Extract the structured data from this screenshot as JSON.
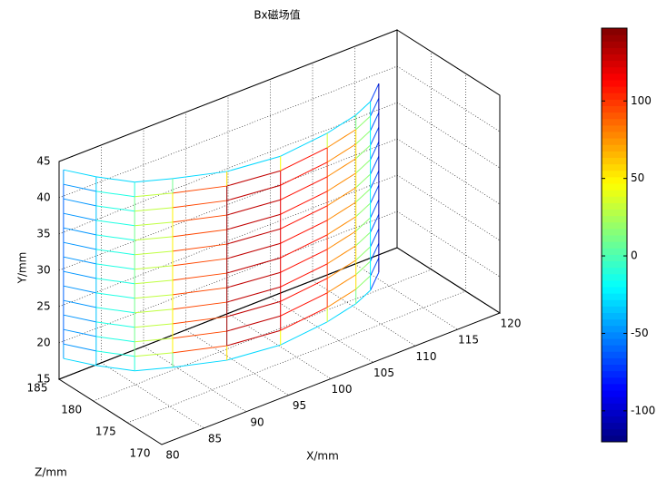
{
  "chart_data": {
    "type": "mesh3d",
    "title": "Bx磁场值",
    "xlabel": "X/mm",
    "ylabel": "Y/mm",
    "zlabel": "Z/mm",
    "xlim": [
      80,
      120
    ],
    "ylim": [
      15,
      45
    ],
    "zlim": [
      170,
      185
    ],
    "xticks": [
      80,
      85,
      90,
      95,
      100,
      105,
      110,
      115,
      120
    ],
    "yticks": [
      15,
      20,
      25,
      30,
      35,
      40,
      45
    ],
    "zticks": [
      170,
      175,
      180,
      185
    ],
    "clim": [
      -120,
      147
    ],
    "cticks": [
      -100,
      -50,
      0,
      50,
      100
    ],
    "colormap": "jet",
    "grid": true,
    "mesh": {
      "x": [
        80.2,
        81.8,
        84,
        87.2,
        92,
        97.7,
        103.8,
        108,
        110.6,
        113.3
      ],
      "z": [
        184.6,
        181.8,
        178.9,
        177.3,
        175.3,
        174.5,
        175.2,
        176.2,
        177.3,
        179.4
      ],
      "y": [
        18,
        20,
        22,
        24,
        26,
        28,
        30,
        32,
        34,
        36,
        38,
        40,
        42,
        44
      ],
      "values": [
        [
          -30,
          -30,
          -30,
          -30,
          -30,
          -30,
          -30,
          -30,
          -30,
          -110
        ],
        [
          -60,
          -35,
          10,
          50,
          140,
          120,
          100,
          55,
          -20,
          -110
        ],
        [
          -60,
          -35,
          10,
          50,
          140,
          120,
          100,
          55,
          -20,
          -110
        ],
        [
          -60,
          -35,
          10,
          50,
          140,
          120,
          100,
          55,
          -20,
          -110
        ],
        [
          -60,
          -35,
          10,
          50,
          140,
          120,
          100,
          55,
          -20,
          -110
        ],
        [
          -60,
          -35,
          10,
          50,
          140,
          120,
          100,
          55,
          -20,
          -110
        ],
        [
          -60,
          -35,
          10,
          50,
          140,
          120,
          100,
          55,
          -20,
          -110
        ],
        [
          -60,
          -35,
          10,
          50,
          140,
          120,
          100,
          55,
          -20,
          -110
        ],
        [
          -60,
          -35,
          10,
          50,
          140,
          120,
          100,
          55,
          -20,
          -110
        ],
        [
          -60,
          -35,
          10,
          50,
          140,
          120,
          100,
          55,
          -20,
          -110
        ],
        [
          -60,
          -35,
          10,
          50,
          140,
          120,
          100,
          55,
          -20,
          -110
        ],
        [
          -60,
          -35,
          10,
          50,
          140,
          120,
          100,
          55,
          -20,
          -110
        ],
        [
          -60,
          -35,
          10,
          50,
          140,
          120,
          100,
          55,
          -20,
          -110
        ],
        [
          -30,
          -30,
          -30,
          -30,
          -30,
          -30,
          -30,
          -30,
          -30,
          -110
        ]
      ]
    }
  }
}
